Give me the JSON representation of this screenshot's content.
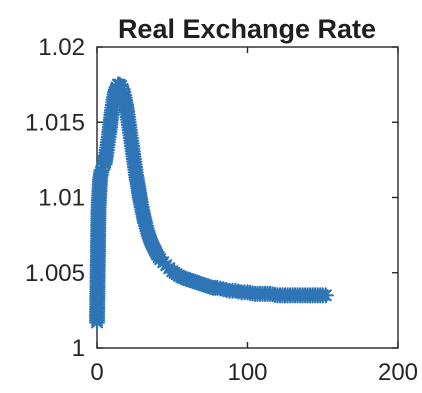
{
  "chart_data": {
    "type": "line",
    "title": "Real Exchange Rate",
    "xlabel": "",
    "ylabel": "",
    "xlim": [
      0,
      200
    ],
    "ylim": [
      1,
      1.02
    ],
    "x_ticks": [
      0,
      100,
      200
    ],
    "x_tick_labels": [
      "0",
      "100",
      "200"
    ],
    "y_ticks": [
      1,
      1.005,
      1.01,
      1.015,
      1.02
    ],
    "y_tick_labels": [
      "1",
      "1.005",
      "1.01",
      "1.015",
      "1.02"
    ],
    "grid": false,
    "legend": "none",
    "marker": "asterisk",
    "series": [
      {
        "color": "#2E75B6",
        "x": [
          0,
          1,
          2,
          3,
          4,
          5,
          6,
          7,
          8,
          9,
          10,
          11,
          12,
          13,
          14,
          15,
          16,
          17,
          18,
          19,
          20,
          21,
          22,
          23,
          24,
          25,
          26,
          27,
          28,
          29,
          30,
          32,
          34,
          36,
          38,
          40,
          42,
          44,
          46,
          48,
          50,
          53,
          56,
          59,
          62,
          65,
          68,
          71,
          74,
          77,
          80,
          84,
          88,
          92,
          96,
          100,
          105,
          110,
          115,
          120,
          125,
          130,
          135,
          140,
          145,
          150,
          152
        ],
        "y": [
          1.0017,
          1.0092,
          1.0112,
          1.0118,
          1.012,
          1.0122,
          1.0128,
          1.0135,
          1.0142,
          1.015,
          1.0158,
          1.0165,
          1.017,
          1.0173,
          1.0175,
          1.0175,
          1.0174,
          1.0172,
          1.0168,
          1.0163,
          1.0157,
          1.015,
          1.0143,
          1.0136,
          1.0129,
          1.0122,
          1.0115,
          1.0109,
          1.0103,
          1.0097,
          1.0092,
          1.0083,
          1.0076,
          1.007,
          1.0066,
          1.0062,
          1.0059,
          1.0057,
          1.0055,
          1.0053,
          1.0051,
          1.0049,
          1.0047,
          1.0046,
          1.0045,
          1.0044,
          1.0043,
          1.0042,
          1.0041,
          1.004,
          1.004,
          1.0039,
          1.0038,
          1.0038,
          1.0037,
          1.0037,
          1.0036,
          1.0036,
          1.0036,
          1.0035,
          1.0035,
          1.0035,
          1.0035,
          1.0035,
          1.0035,
          1.0035,
          1.0035
        ]
      }
    ]
  }
}
